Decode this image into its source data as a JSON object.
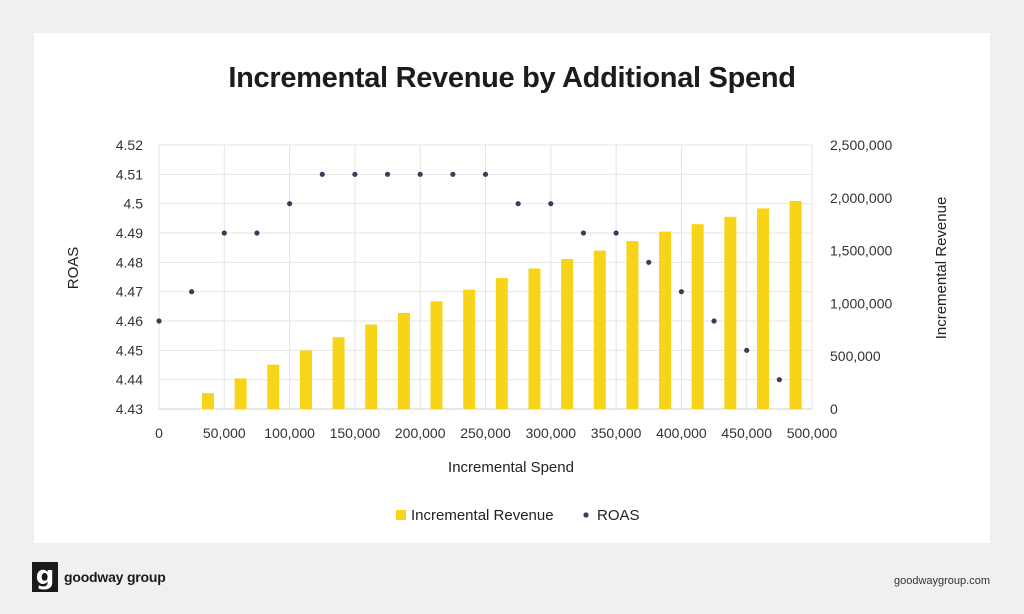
{
  "chart_data": {
    "type": "bar",
    "title": "Incremental Revenue by Additional Spend",
    "xlabel": "Incremental Spend",
    "ylabel_left": "ROAS",
    "ylabel_right": "Incremental Revenue",
    "x_ticks": [
      "0",
      "50,000",
      "100,000",
      "150,000",
      "200,000",
      "250,000",
      "300,000",
      "350,000",
      "400,000",
      "450,000",
      "500,000"
    ],
    "left_ticks": [
      "4.43",
      "4.44",
      "4.45",
      "4.46",
      "4.47",
      "4.48",
      "4.49",
      "4.5",
      "4.51",
      "4.52"
    ],
    "right_ticks": [
      "0",
      "500,000",
      "1,000,000",
      "1,500,000",
      "2,000,000",
      "2,500,000"
    ],
    "ylim_left": [
      4.43,
      4.52
    ],
    "ylim_right": [
      0,
      2500000
    ],
    "xlim": [
      0,
      500000
    ],
    "grid": true,
    "legend_position": "bottom",
    "series": [
      {
        "name": "Incremental Revenue",
        "type": "bar",
        "axis": "right",
        "color": "#f7d417",
        "x": [
          37500,
          62500,
          87500,
          112500,
          137500,
          162500,
          187500,
          212500,
          237500,
          262500,
          287500,
          312500,
          337500,
          362500,
          387500,
          412500,
          437500,
          462500,
          487500
        ],
        "values": [
          150000,
          290000,
          420000,
          555000,
          680000,
          800000,
          910000,
          1020000,
          1130000,
          1240000,
          1330000,
          1420000,
          1500000,
          1590000,
          1680000,
          1750000,
          1820000,
          1900000,
          1970000
        ]
      },
      {
        "name": "ROAS",
        "type": "scatter",
        "axis": "left",
        "color": "#3d3b5c",
        "x": [
          0,
          25000,
          50000,
          75000,
          100000,
          125000,
          150000,
          175000,
          200000,
          225000,
          250000,
          275000,
          300000,
          325000,
          350000,
          375000,
          400000,
          425000,
          450000,
          475000
        ],
        "values": [
          4.46,
          4.47,
          4.49,
          4.49,
          4.5,
          4.51,
          4.51,
          4.51,
          4.51,
          4.51,
          4.51,
          4.5,
          4.5,
          4.49,
          4.49,
          4.48,
          4.47,
          4.46,
          4.45,
          4.44
        ]
      }
    ]
  },
  "footer": {
    "logo_mark": "g",
    "logo_text": "goodway group",
    "url": "goodwaygroup.com"
  }
}
